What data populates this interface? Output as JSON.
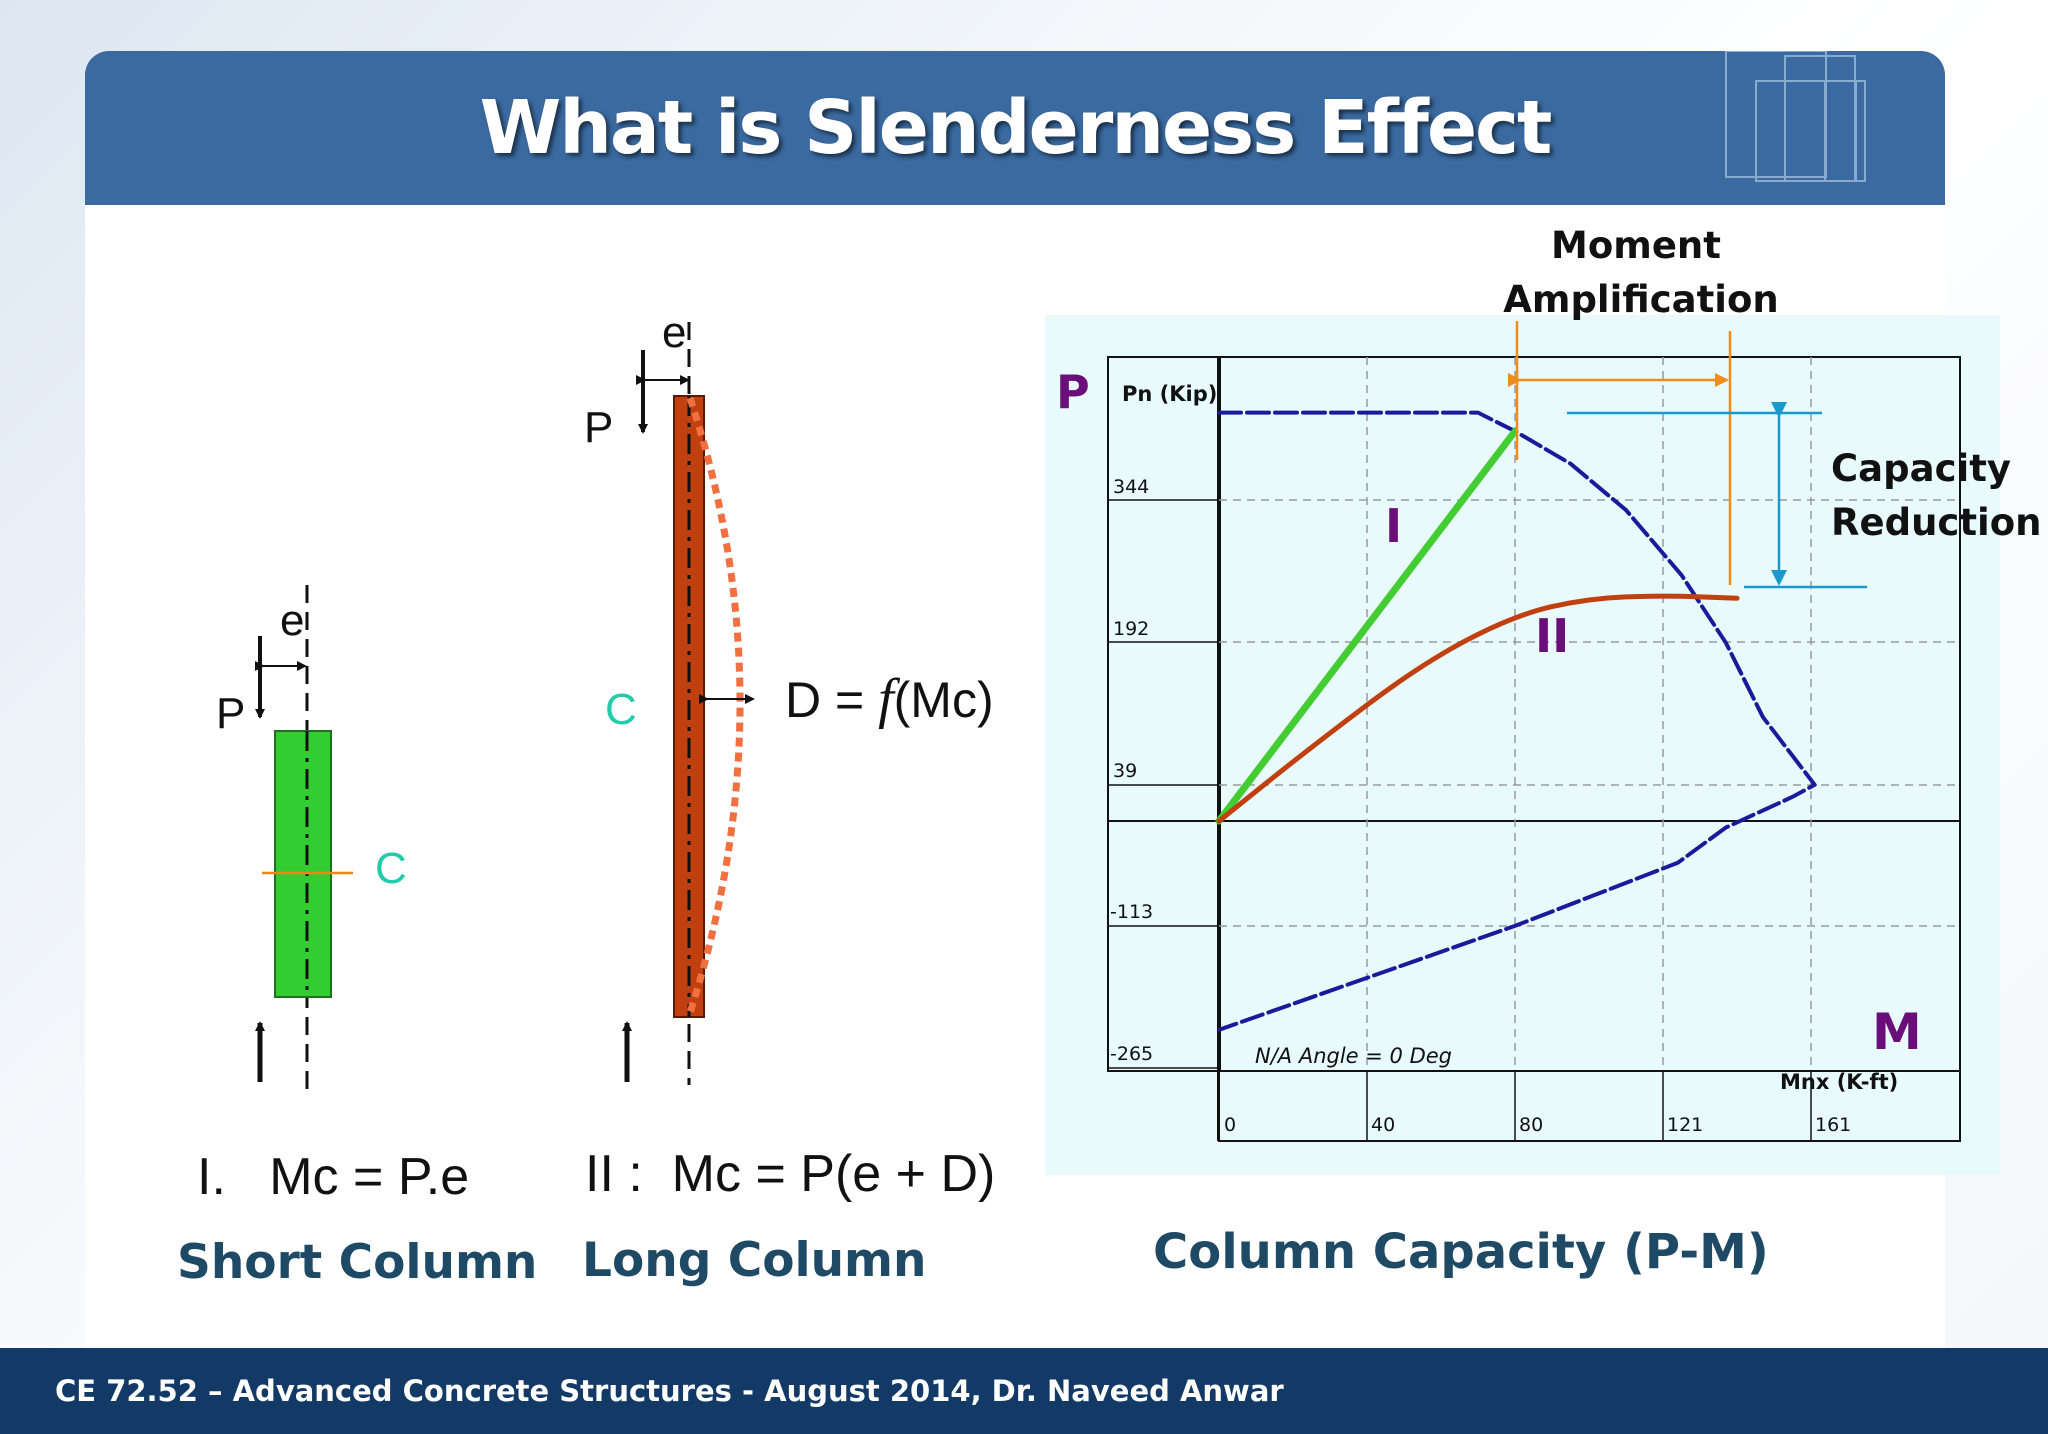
{
  "slide_title": "What is Slenderness Effect",
  "footer": "CE 72.52 – Advanced Concrete Structures - August 2014,  Dr. Naveed Anwar",
  "short_column": {
    "load_label": "P",
    "eccentricity_label": "e",
    "centroid_label": "C",
    "equation": "I.   Mc = P.e",
    "caption": "Short Column",
    "fill_color": "#33cc33"
  },
  "long_column": {
    "load_label": "P",
    "eccentricity_label": "e",
    "centroid_label": "C",
    "deflection_eq_prefix": "D = ",
    "deflection_eq_f": "f",
    "deflection_eq_suffix": "(Mc)",
    "equation": "II :  Mc = P(e + D)",
    "caption": "Long Column",
    "fill_color": "#c04010",
    "deflected_shape_color": "#f07040"
  },
  "interaction": {
    "caption": "Column Capacity (P-M)",
    "p_axis_label": "P",
    "m_axis_label": "M",
    "pn_label": "Pn (Kip)",
    "mnx_label": "Mnx (K-ft)",
    "na_angle_label": "N/A Angle = 0 Deg",
    "y_ticks": [
      "344",
      "192",
      "39",
      "-113",
      "-265"
    ],
    "x_ticks": [
      "0",
      "40",
      "80",
      "121",
      "161"
    ],
    "path_I_label": "I",
    "path_II_label": "II",
    "moment_amp_line1": "Moment",
    "moment_amp_line2": "Amplification",
    "capacity_line1": "Capacity",
    "capacity_line2": "Reduction",
    "colors": {
      "envelope": "#1a1a9a",
      "path_I": "#44cc33",
      "path_II": "#c04010",
      "moment_arrow": "#f08c1a",
      "capacity_arrow": "#1a99cc",
      "axis_letters": "#6a0f7a",
      "chart_bg": "#e8fafc"
    }
  },
  "chart_data": {
    "type": "line",
    "title": "",
    "xlabel": "Mnx (K-ft)",
    "ylabel": "Pn (Kip)",
    "x_ticks": [
      0,
      40,
      80,
      121,
      161
    ],
    "y_ticks": [
      344,
      192,
      39,
      -113,
      -265
    ],
    "xlim": [
      0,
      180
    ],
    "ylim": [
      -265,
      440
    ],
    "series": [
      {
        "values": [
          [
            0,
            440
          ],
          [
            70,
            440
          ],
          [
            80,
            420
          ],
          [
            95,
            385
          ],
          [
            110,
            335
          ],
          [
            125,
            265
          ],
          [
            137,
            192
          ],
          [
            147,
            112
          ],
          [
            161,
            39
          ],
          [
            155,
            26
          ],
          [
            137,
            -7
          ],
          [
            124,
            -45
          ],
          [
            80,
            -113
          ],
          [
            0,
            -225
          ]
        ]
      },
      {
        "name": "I",
        "values": [
          [
            0,
            0
          ],
          [
            80,
            420
          ]
        ]
      },
      {
        "name": "II",
        "values": [
          [
            0,
            0
          ],
          [
            25,
            80
          ],
          [
            55,
            170
          ],
          [
            80,
            222
          ],
          [
            100,
            240
          ],
          [
            120,
            243
          ],
          [
            140,
            240
          ]
        ]
      }
    ]
  }
}
